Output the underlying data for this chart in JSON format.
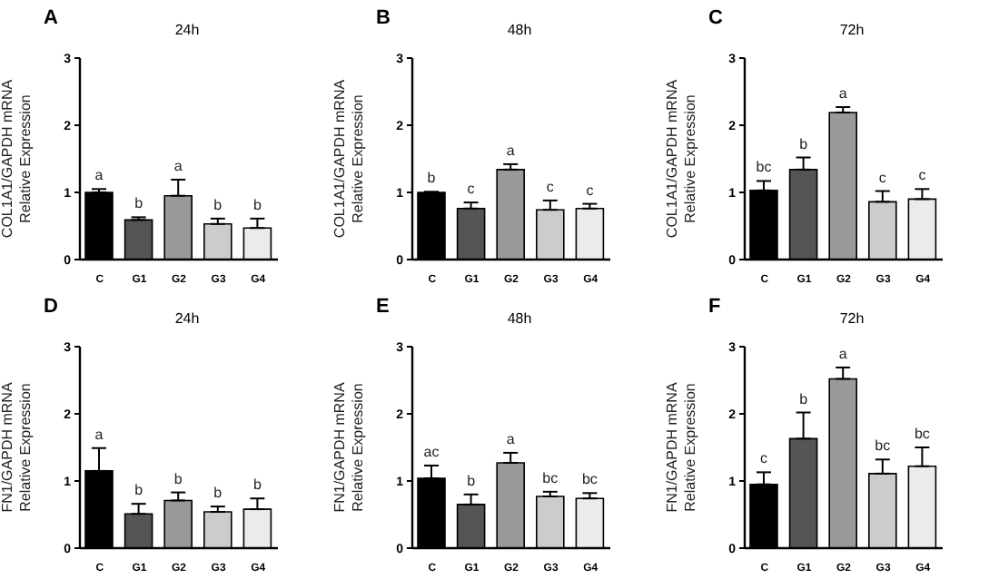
{
  "chart_data": [
    {
      "type": "bar",
      "title": "A",
      "subtitle": "24h",
      "ylabel": "COL1A1/GAPDH mRNA\nRelative Expression",
      "categories": [
        "C",
        "G1",
        "G2",
        "G3",
        "G4"
      ],
      "values": [
        1.0,
        0.59,
        0.95,
        0.53,
        0.47
      ],
      "errors": [
        0.05,
        0.04,
        0.24,
        0.08,
        0.14
      ],
      "value_labels": [
        "a",
        "b",
        "a",
        "b",
        "b"
      ],
      "colors": [
        "#000000",
        "#555555",
        "#999999",
        "#cccccc",
        "#ebebeb"
      ],
      "ylim": [
        0,
        3
      ],
      "yticks": [
        0,
        1,
        2,
        3
      ],
      "grid": false,
      "legend": false
    },
    {
      "type": "bar",
      "title": "B",
      "subtitle": "48h",
      "ylabel": "COL1A1/GAPDH mRNA\nRelative Expression",
      "categories": [
        "C",
        "G1",
        "G2",
        "G3",
        "G4"
      ],
      "values": [
        1.0,
        0.76,
        1.34,
        0.74,
        0.76
      ],
      "errors": [
        0.01,
        0.09,
        0.08,
        0.14,
        0.07
      ],
      "value_labels": [
        "b",
        "c",
        "a",
        "c",
        "c"
      ],
      "colors": [
        "#000000",
        "#555555",
        "#999999",
        "#cccccc",
        "#ebebeb"
      ],
      "ylim": [
        0,
        3
      ],
      "yticks": [
        0,
        1,
        2,
        3
      ],
      "grid": false,
      "legend": false
    },
    {
      "type": "bar",
      "title": "C",
      "subtitle": "72h",
      "ylabel": "COL1A1/GAPDH mRNA\nRelative Expression",
      "categories": [
        "C",
        "G1",
        "G2",
        "G3",
        "G4"
      ],
      "values": [
        1.03,
        1.34,
        2.19,
        0.86,
        0.9
      ],
      "errors": [
        0.14,
        0.18,
        0.08,
        0.16,
        0.15
      ],
      "value_labels": [
        "bc",
        "b",
        "a",
        "c",
        "c"
      ],
      "colors": [
        "#000000",
        "#555555",
        "#999999",
        "#cccccc",
        "#ebebeb"
      ],
      "ylim": [
        0,
        3
      ],
      "yticks": [
        0,
        1,
        2,
        3
      ],
      "grid": false,
      "legend": false
    },
    {
      "type": "bar",
      "title": "D",
      "subtitle": "24h",
      "ylabel": "FN1/GAPDH mRNA\nRelative Expression",
      "categories": [
        "C",
        "G1",
        "G2",
        "G3",
        "G4"
      ],
      "values": [
        1.15,
        0.51,
        0.71,
        0.54,
        0.58
      ],
      "errors": [
        0.34,
        0.15,
        0.12,
        0.08,
        0.16
      ],
      "value_labels": [
        "a",
        "b",
        "b",
        "b",
        "b"
      ],
      "colors": [
        "#000000",
        "#555555",
        "#999999",
        "#cccccc",
        "#ebebeb"
      ],
      "ylim": [
        0,
        3
      ],
      "yticks": [
        0,
        1,
        2,
        3
      ],
      "grid": false,
      "legend": false
    },
    {
      "type": "bar",
      "title": "E",
      "subtitle": "48h",
      "ylabel": "FN1/GAPDH mRNA\nRelative Expression",
      "categories": [
        "C",
        "G1",
        "G2",
        "G3",
        "G4"
      ],
      "values": [
        1.04,
        0.65,
        1.27,
        0.77,
        0.74
      ],
      "errors": [
        0.19,
        0.15,
        0.15,
        0.07,
        0.08
      ],
      "value_labels": [
        "ac",
        "b",
        "a",
        "bc",
        "bc"
      ],
      "colors": [
        "#000000",
        "#555555",
        "#999999",
        "#cccccc",
        "#ebebeb"
      ],
      "ylim": [
        0,
        3
      ],
      "yticks": [
        0,
        1,
        2,
        3
      ],
      "grid": false,
      "legend": false
    },
    {
      "type": "bar",
      "title": "F",
      "subtitle": "72h",
      "ylabel": "FN1/GAPDH mRNA\nRelative Expression",
      "categories": [
        "C",
        "G1",
        "G2",
        "G3",
        "G4"
      ],
      "values": [
        0.95,
        1.63,
        2.52,
        1.11,
        1.22
      ],
      "errors": [
        0.18,
        0.39,
        0.17,
        0.21,
        0.28
      ],
      "value_labels": [
        "c",
        "b",
        "a",
        "bc",
        "bc"
      ],
      "colors": [
        "#000000",
        "#555555",
        "#999999",
        "#cccccc",
        "#ebebeb"
      ],
      "ylim": [
        0,
        3
      ],
      "yticks": [
        0,
        1,
        2,
        3
      ],
      "grid": false,
      "legend": false
    }
  ]
}
